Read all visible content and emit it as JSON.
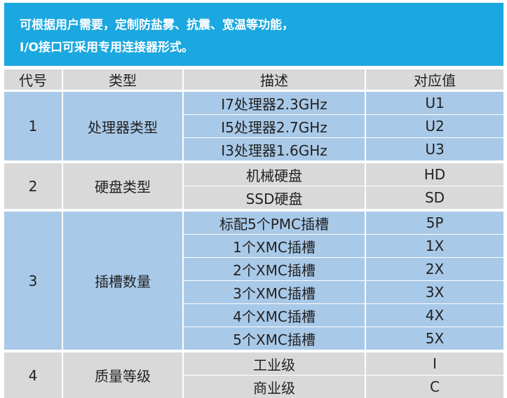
{
  "banner": {
    "line1": "可根据用户需要，定制防盐雾、抗震、宽温等功能，",
    "line2": "I/O接口可采用专用连接器形式。"
  },
  "table": {
    "headers": [
      "代号",
      "类型",
      "描述",
      "对应值"
    ],
    "groups": [
      {
        "code": "1",
        "type": "处理器类型",
        "rows": [
          {
            "desc": "I7处理器2.3GHz",
            "value": "U1"
          },
          {
            "desc": "I5处理器2.7GHz",
            "value": "U2"
          },
          {
            "desc": "I3处理器1.6GHz",
            "value": "U3"
          }
        ]
      },
      {
        "code": "2",
        "type": "硬盘类型",
        "rows": [
          {
            "desc": "机械硬盘",
            "value": "HD"
          },
          {
            "desc": "SSD硬盘",
            "value": "SD"
          }
        ]
      },
      {
        "code": "3",
        "type": "插槽数量",
        "rows": [
          {
            "desc": "标配5个PMC插槽",
            "value": "5P"
          },
          {
            "desc": "1个XMC插槽",
            "value": "1X"
          },
          {
            "desc": "2个XMC插槽",
            "value": "2X"
          },
          {
            "desc": "3个XMC插槽",
            "value": "3X"
          },
          {
            "desc": "4个XMC插槽",
            "value": "4X"
          },
          {
            "desc": "5个XMC插槽",
            "value": "5X"
          }
        ]
      },
      {
        "code": "4",
        "type": "质量等级",
        "rows": [
          {
            "desc": "工业级",
            "value": "I"
          },
          {
            "desc": "商业级",
            "value": "C"
          }
        ]
      }
    ]
  },
  "colors": {
    "banner": "#1ba8e0",
    "blue_cell": "#a9c9e8",
    "gray_cell": "#d9d9d9"
  }
}
